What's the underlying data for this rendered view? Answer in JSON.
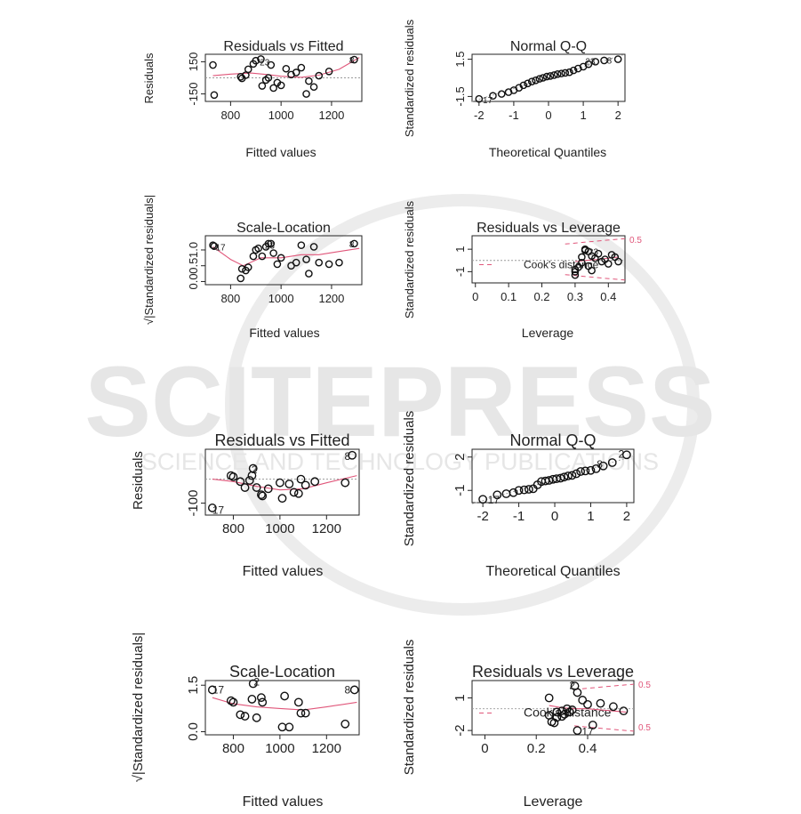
{
  "watermark": {
    "title": "SCITEPRESS",
    "subtitle": "SCIENCE AND TECHNOLOGY PUBLICATIONS",
    "color": "#e6e6e6"
  },
  "chart_data": [
    {
      "type": "scatter",
      "title": "Residuals vs Fitted",
      "xlabel": "Fitted values",
      "ylabel": "Residuals",
      "xlim": [
        700,
        1320
      ],
      "ylim": [
        -220,
        220
      ],
      "xticks": [
        800,
        1000,
        1200
      ],
      "yticks": [
        -150,
        150
      ],
      "ytick_labels": [
        "-150",
        "150"
      ],
      "points": [
        [
          730,
          120
        ],
        [
          735,
          -160
        ],
        [
          840,
          10
        ],
        [
          845,
          -5
        ],
        [
          860,
          25
        ],
        [
          870,
          80
        ],
        [
          890,
          130
        ],
        [
          900,
          160
        ],
        [
          920,
          175
        ],
        [
          925,
          -75
        ],
        [
          940,
          -20
        ],
        [
          950,
          0
        ],
        [
          960,
          120
        ],
        [
          970,
          -95
        ],
        [
          985,
          -45
        ],
        [
          1000,
          -70
        ],
        [
          1020,
          85
        ],
        [
          1040,
          30
        ],
        [
          1060,
          50
        ],
        [
          1080,
          95
        ],
        [
          1100,
          -150
        ],
        [
          1110,
          -30
        ],
        [
          1130,
          -85
        ],
        [
          1150,
          20
        ],
        [
          1190,
          60
        ],
        [
          1290,
          170
        ]
      ],
      "smooth": [
        [
          730,
          20
        ],
        [
          800,
          35
        ],
        [
          880,
          45
        ],
        [
          950,
          30
        ],
        [
          1000,
          15
        ],
        [
          1080,
          5
        ],
        [
          1150,
          25
        ],
        [
          1230,
          80
        ],
        [
          1310,
          190
        ]
      ],
      "hline": 0,
      "point_labels": [
        {
          "text": "23",
          "x": 935,
          "y": 150
        },
        {
          "text": "8",
          "x": 1280,
          "y": 170
        }
      ]
    },
    {
      "type": "scatter",
      "title": "Normal Q-Q",
      "xlabel": "Theoretical Quantiles",
      "ylabel": "Standardized residuals",
      "xlim": [
        -2.2,
        2.2
      ],
      "ylim": [
        -1.9,
        1.9
      ],
      "xticks": [
        -2,
        -1,
        0,
        1,
        2
      ],
      "yticks": [
        -1.5,
        1.5
      ],
      "ytick_labels": [
        "-1.5",
        "1.5"
      ],
      "points": [
        [
          -2.0,
          -1.7
        ],
        [
          -1.6,
          -1.45
        ],
        [
          -1.35,
          -1.3
        ],
        [
          -1.15,
          -1.15
        ],
        [
          -1.0,
          -1.0
        ],
        [
          -0.85,
          -0.8
        ],
        [
          -0.72,
          -0.6
        ],
        [
          -0.6,
          -0.45
        ],
        [
          -0.48,
          -0.3
        ],
        [
          -0.37,
          -0.2
        ],
        [
          -0.26,
          -0.08
        ],
        [
          -0.16,
          0.0
        ],
        [
          -0.05,
          0.1
        ],
        [
          0.05,
          0.15
        ],
        [
          0.16,
          0.22
        ],
        [
          0.26,
          0.3
        ],
        [
          0.37,
          0.35
        ],
        [
          0.48,
          0.4
        ],
        [
          0.6,
          0.45
        ],
        [
          0.72,
          0.6
        ],
        [
          0.85,
          0.75
        ],
        [
          1.0,
          0.9
        ],
        [
          1.15,
          1.1
        ],
        [
          1.35,
          1.3
        ],
        [
          1.6,
          1.4
        ],
        [
          2.0,
          1.5
        ]
      ],
      "qqline": [
        [
          -2.2,
          -1.9
        ],
        [
          2.2,
          1.9
        ]
      ],
      "point_labels": [
        {
          "text": "17",
          "x": -1.75,
          "y": -1.75
        },
        {
          "text": "23",
          "x": 1.2,
          "y": 1.35
        },
        {
          "text": "8",
          "x": 1.75,
          "y": 1.45
        }
      ]
    },
    {
      "type": "scatter",
      "title": "Scale-Location",
      "xlabel": "Fitted values",
      "ylabel": "√|Standardized residuals|",
      "xlim": [
        700,
        1320
      ],
      "ylim": [
        -0.1,
        1.45
      ],
      "xticks": [
        800,
        1000,
        1200
      ],
      "yticks": [
        0.0,
        0.5,
        1.0
      ],
      "ytick_labels": [
        "0.0",
        "0.5",
        "1.0"
      ],
      "points": [
        [
          730,
          1.15
        ],
        [
          735,
          1.12
        ],
        [
          840,
          0.1
        ],
        [
          845,
          0.4
        ],
        [
          860,
          0.35
        ],
        [
          870,
          0.45
        ],
        [
          890,
          0.8
        ],
        [
          900,
          1.0
        ],
        [
          910,
          1.05
        ],
        [
          925,
          0.8
        ],
        [
          940,
          1.1
        ],
        [
          950,
          1.2
        ],
        [
          960,
          1.2
        ],
        [
          970,
          0.9
        ],
        [
          985,
          0.55
        ],
        [
          1000,
          0.75
        ],
        [
          1040,
          0.5
        ],
        [
          1060,
          0.6
        ],
        [
          1080,
          1.15
        ],
        [
          1100,
          0.7
        ],
        [
          1110,
          0.25
        ],
        [
          1130,
          1.1
        ],
        [
          1150,
          0.6
        ],
        [
          1190,
          0.55
        ],
        [
          1230,
          0.6
        ],
        [
          1290,
          1.2
        ]
      ],
      "smooth": [
        [
          730,
          1.1
        ],
        [
          800,
          0.7
        ],
        [
          850,
          0.5
        ],
        [
          920,
          0.75
        ],
        [
          1000,
          0.75
        ],
        [
          1080,
          0.85
        ],
        [
          1150,
          0.85
        ],
        [
          1230,
          0.95
        ],
        [
          1310,
          1.05
        ]
      ],
      "point_labels": [
        {
          "text": "17",
          "x": 760,
          "y": 1.1
        },
        {
          "text": "23",
          "x": 955,
          "y": 1.15
        },
        {
          "text": "8",
          "x": 1280,
          "y": 1.2
        }
      ]
    },
    {
      "type": "scatter",
      "title": "Residuals vs Leverage",
      "xlabel": "Leverage",
      "ylabel": "Standardized residuals",
      "xlim": [
        -0.01,
        0.45
      ],
      "ylim": [
        -2.0,
        2.2
      ],
      "xticks": [
        0.0,
        0.1,
        0.2,
        0.3,
        0.4
      ],
      "yticks": [
        -1,
        1
      ],
      "ytick_labels": [
        "-1",
        "1"
      ],
      "points": [
        [
          0.3,
          -1.3
        ],
        [
          0.3,
          -1.0
        ],
        [
          0.3,
          -0.8
        ],
        [
          0.31,
          -0.6
        ],
        [
          0.32,
          -0.2
        ],
        [
          0.32,
          0.3
        ],
        [
          0.33,
          0.9
        ],
        [
          0.33,
          1.0
        ],
        [
          0.34,
          0.8
        ],
        [
          0.34,
          -0.5
        ],
        [
          0.35,
          0.4
        ],
        [
          0.35,
          -0.9
        ],
        [
          0.36,
          0.2
        ],
        [
          0.37,
          0.6
        ],
        [
          0.38,
          -0.1
        ],
        [
          0.39,
          0.1
        ],
        [
          0.4,
          -0.3
        ],
        [
          0.41,
          0.5
        ],
        [
          0.42,
          0.3
        ],
        [
          0.43,
          -0.1
        ]
      ],
      "smooth": [
        [
          0.3,
          -0.1
        ],
        [
          0.33,
          0.0
        ],
        [
          0.37,
          0.1
        ],
        [
          0.43,
          0.3
        ]
      ],
      "hline": 0,
      "legend": "Cook's distance",
      "cook_label": "0.5",
      "point_labels": [
        {
          "text": "23",
          "x": 0.355,
          "y": 0.8
        }
      ]
    },
    {
      "type": "scatter",
      "title": "Residuals vs Fitted",
      "xlabel": "Fitted values",
      "ylabel": "Residuals",
      "xlim": [
        680,
        1340
      ],
      "ylim": [
        -150,
        125
      ],
      "xticks": [
        800,
        1000,
        1200
      ],
      "yticks": [
        -100
      ],
      "ytick_labels": [
        "-100"
      ],
      "points": [
        [
          710,
          -120
        ],
        [
          790,
          15
        ],
        [
          800,
          10
        ],
        [
          830,
          -10
        ],
        [
          850,
          -35
        ],
        [
          870,
          -5
        ],
        [
          880,
          15
        ],
        [
          885,
          45
        ],
        [
          900,
          -35
        ],
        [
          920,
          -65
        ],
        [
          925,
          -70
        ],
        [
          950,
          -40
        ],
        [
          1000,
          -15
        ],
        [
          1010,
          -80
        ],
        [
          1040,
          -20
        ],
        [
          1060,
          -55
        ],
        [
          1080,
          -60
        ],
        [
          1090,
          0
        ],
        [
          1110,
          -25
        ],
        [
          1150,
          -10
        ],
        [
          1280,
          -15
        ],
        [
          1310,
          100
        ]
      ],
      "smooth": [
        [
          710,
          0
        ],
        [
          800,
          -10
        ],
        [
          900,
          -30
        ],
        [
          1000,
          -45
        ],
        [
          1100,
          -40
        ],
        [
          1200,
          -15
        ],
        [
          1330,
          15
        ]
      ],
      "hline": 0,
      "point_labels": [
        {
          "text": "17",
          "x": 735,
          "y": -130
        },
        {
          "text": "2",
          "x": 890,
          "y": 40
        },
        {
          "text": "8",
          "x": 1290,
          "y": 95
        }
      ]
    },
    {
      "type": "scatter",
      "title": "Normal Q-Q",
      "xlabel": "Theoretical Quantiles",
      "ylabel": "Standardized residuals",
      "xlim": [
        -2.3,
        2.2
      ],
      "ylim": [
        -2.1,
        2.7
      ],
      "xticks": [
        -2,
        -1,
        0,
        1,
        2
      ],
      "yticks": [
        -1,
        2
      ],
      "ytick_labels": [
        "-1",
        "2"
      ],
      "points": [
        [
          -2.0,
          -1.8
        ],
        [
          -1.6,
          -1.4
        ],
        [
          -1.35,
          -1.3
        ],
        [
          -1.15,
          -1.2
        ],
        [
          -1.0,
          -1.0
        ],
        [
          -0.85,
          -0.95
        ],
        [
          -0.72,
          -0.9
        ],
        [
          -0.6,
          -0.85
        ],
        [
          -0.48,
          -0.5
        ],
        [
          -0.37,
          -0.2
        ],
        [
          -0.26,
          -0.15
        ],
        [
          -0.16,
          -0.1
        ],
        [
          -0.05,
          0.0
        ],
        [
          0.05,
          0.05
        ],
        [
          0.16,
          0.1
        ],
        [
          0.26,
          0.2
        ],
        [
          0.37,
          0.3
        ],
        [
          0.48,
          0.35
        ],
        [
          0.6,
          0.5
        ],
        [
          0.72,
          0.7
        ],
        [
          0.85,
          0.75
        ],
        [
          1.0,
          0.8
        ],
        [
          1.15,
          0.95
        ],
        [
          1.35,
          1.2
        ],
        [
          1.6,
          1.5
        ],
        [
          2.0,
          2.2
        ]
      ],
      "qqline": [
        [
          -2.3,
          -2.2
        ],
        [
          2.2,
          2.1
        ]
      ],
      "point_labels": [
        {
          "text": "17",
          "x": -1.7,
          "y": -1.85
        },
        {
          "text": "8",
          "x": 1.25,
          "y": 1.35
        },
        {
          "text": "2",
          "x": 1.85,
          "y": 2.25
        }
      ]
    },
    {
      "type": "scatter",
      "title": "Scale-Location",
      "xlabel": "Fitted values",
      "ylabel": "√|Standardized residuals|",
      "xlim": [
        680,
        1340
      ],
      "ylim": [
        -0.1,
        1.65
      ],
      "xticks": [
        800,
        1000,
        1200
      ],
      "yticks": [
        0.0,
        1.5
      ],
      "ytick_labels": [
        "0.0",
        "1.5"
      ],
      "points": [
        [
          710,
          1.35
        ],
        [
          790,
          1.0
        ],
        [
          800,
          0.95
        ],
        [
          830,
          0.55
        ],
        [
          850,
          0.5
        ],
        [
          880,
          1.05
        ],
        [
          885,
          1.55
        ],
        [
          900,
          0.45
        ],
        [
          920,
          1.1
        ],
        [
          925,
          0.95
        ],
        [
          1010,
          0.15
        ],
        [
          1020,
          1.15
        ],
        [
          1040,
          0.15
        ],
        [
          1080,
          0.95
        ],
        [
          1090,
          0.6
        ],
        [
          1110,
          0.6
        ],
        [
          1280,
          0.25
        ],
        [
          1320,
          1.35
        ]
      ],
      "smooth": [
        [
          710,
          1.1
        ],
        [
          800,
          0.9
        ],
        [
          900,
          0.8
        ],
        [
          1000,
          0.75
        ],
        [
          1100,
          0.7
        ],
        [
          1200,
          0.8
        ],
        [
          1330,
          0.95
        ]
      ],
      "point_labels": [
        {
          "text": "17",
          "x": 735,
          "y": 1.35
        },
        {
          "text": "2",
          "x": 900,
          "y": 1.6
        },
        {
          "text": "8",
          "x": 1290,
          "y": 1.35
        }
      ]
    },
    {
      "type": "scatter",
      "title": "Residuals vs Leverage",
      "xlabel": "Leverage",
      "ylabel": "Standardized residuals",
      "xlim": [
        -0.05,
        0.58
      ],
      "ylim": [
        -2.4,
        2.6
      ],
      "xticks": [
        0.0,
        0.2,
        0.4
      ],
      "yticks": [
        -2,
        1
      ],
      "ytick_labels": [
        "-2",
        "1"
      ],
      "points": [
        [
          0.25,
          1.0
        ],
        [
          0.25,
          -0.6
        ],
        [
          0.26,
          -1.2
        ],
        [
          0.27,
          -1.3
        ],
        [
          0.28,
          -0.8
        ],
        [
          0.28,
          -0.3
        ],
        [
          0.3,
          -0.7
        ],
        [
          0.3,
          -0.2
        ],
        [
          0.31,
          -0.5
        ],
        [
          0.32,
          0.0
        ],
        [
          0.33,
          -0.3
        ],
        [
          0.34,
          -0.1
        ],
        [
          0.35,
          2.1
        ],
        [
          0.36,
          1.5
        ],
        [
          0.36,
          -2.0
        ],
        [
          0.38,
          0.8
        ],
        [
          0.4,
          0.4
        ],
        [
          0.42,
          -1.5
        ],
        [
          0.45,
          0.5
        ],
        [
          0.5,
          0.2
        ],
        [
          0.54,
          -0.2
        ]
      ],
      "smooth": [
        [
          0.25,
          0.3
        ],
        [
          0.3,
          0.1
        ],
        [
          0.35,
          0.0
        ],
        [
          0.4,
          0.0
        ],
        [
          0.45,
          -0.1
        ],
        [
          0.55,
          -0.3
        ]
      ],
      "hline": 0,
      "legend": "Cook's distance",
      "cook_label": "0.5",
      "point_labels": [
        {
          "text": "2",
          "x": 0.34,
          "y": 2.15
        },
        {
          "text": "17",
          "x": 0.4,
          "y": -2.1
        }
      ]
    }
  ]
}
